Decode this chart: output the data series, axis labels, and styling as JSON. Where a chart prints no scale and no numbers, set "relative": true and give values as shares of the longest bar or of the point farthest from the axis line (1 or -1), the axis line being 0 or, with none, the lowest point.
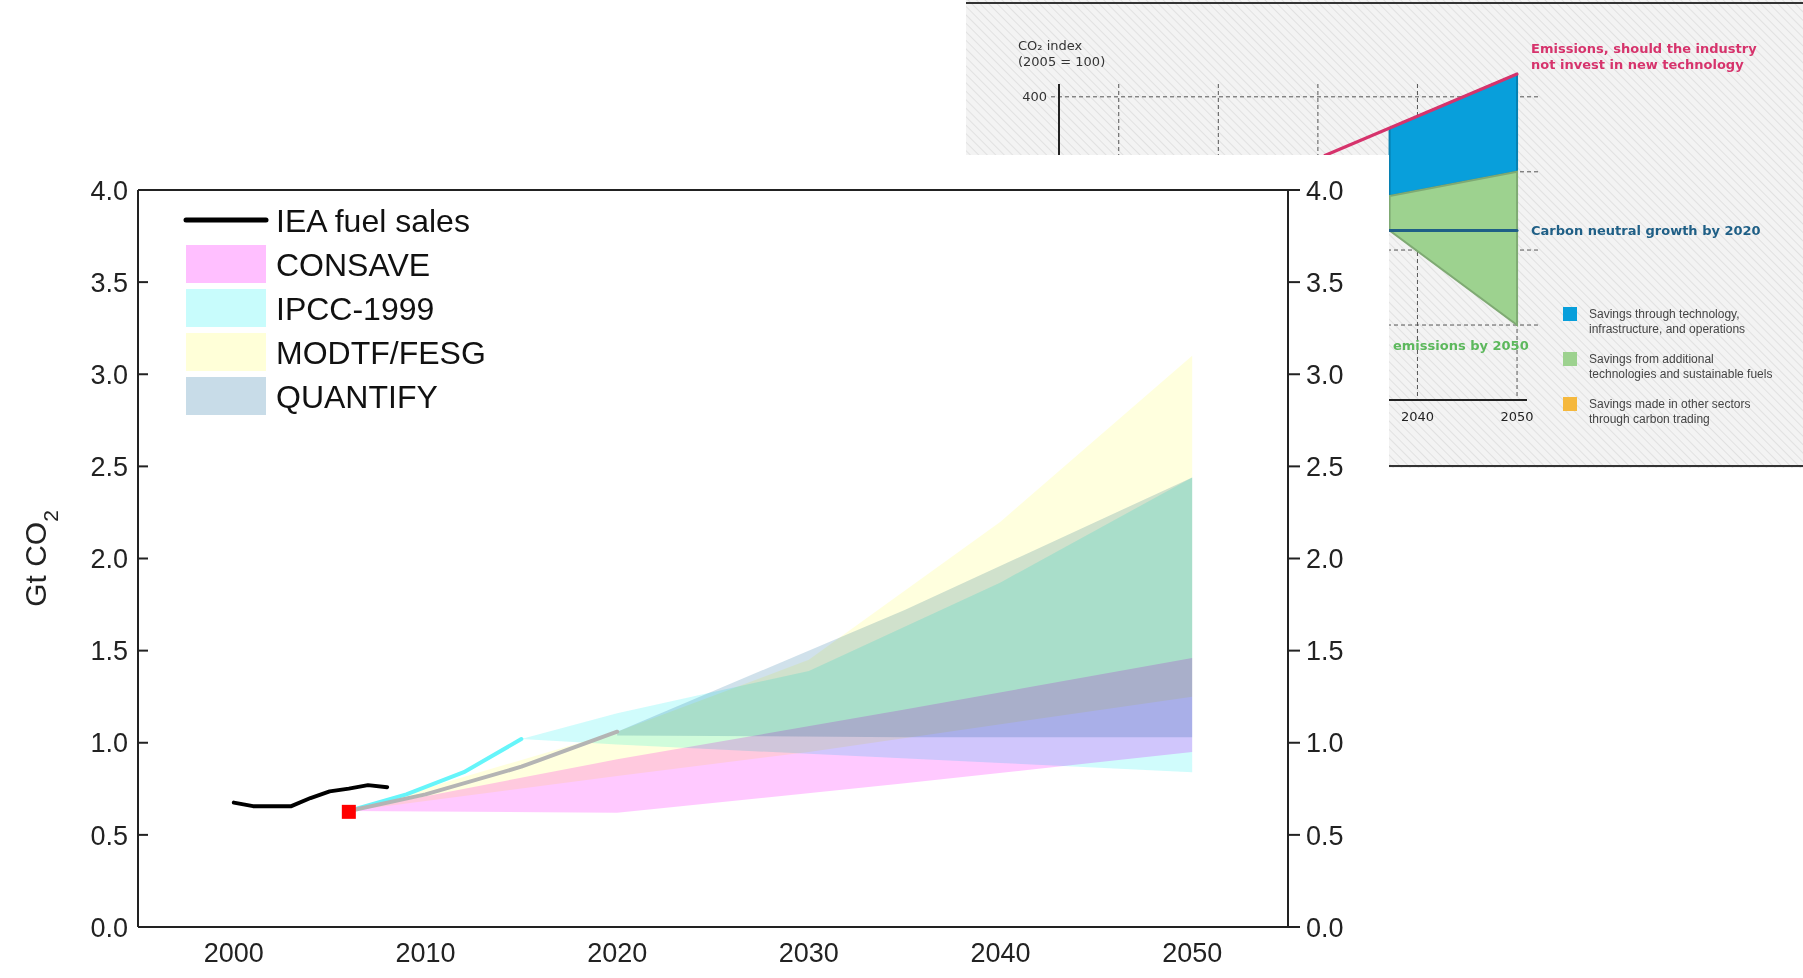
{
  "chart_data": [
    {
      "type": "area",
      "ylabel": "Gt CO$_{2}$",
      "xlim": [
        1995,
        2055
      ],
      "xticks": [
        2000,
        2010,
        2020,
        2030,
        2040,
        2050
      ],
      "ylim": [
        0,
        4
      ],
      "yticks": [
        {
          "value": 0,
          "label": "0.0"
        },
        {
          "value": 0.5,
          "label": "0.5"
        },
        {
          "value": 1,
          "label": "1.0"
        },
        {
          "value": 1.5,
          "label": "1.5"
        },
        {
          "value": 2,
          "label": "2.0"
        },
        {
          "value": 2.5,
          "label": "2.5"
        },
        {
          "value": 3,
          "label": "3.0"
        },
        {
          "value": 3.5,
          "label": "3.5"
        },
        {
          "value": 4,
          "label": "4.0"
        }
      ],
      "y2lim": [
        0,
        4
      ],
      "y2ticks": [
        {
          "value": 0,
          "label": "0.0"
        },
        {
          "value": 0.5,
          "label": "0.5"
        },
        {
          "value": 1,
          "label": "1.0"
        },
        {
          "value": 1.5,
          "label": "1.5"
        },
        {
          "value": 2,
          "label": "2.0"
        },
        {
          "value": 2.5,
          "label": "2.5"
        },
        {
          "value": 3,
          "label": "3.0"
        },
        {
          "value": 3.5,
          "label": "3.5"
        },
        {
          "value": 4,
          "label": "4.0"
        }
      ],
      "legend": "top left",
      "series": [
        {
          "type": "line",
          "name": "IEA fuel sales",
          "color": "#000000",
          "x": [
            2000,
            2001,
            2002,
            2003,
            2004,
            2005,
            2006,
            2007,
            2008
          ],
          "values": [
            0.675,
            0.656,
            0.656,
            0.656,
            0.7,
            0.736,
            0.751,
            0.77,
            0.759
          ]
        },
        {
          "name": "CONSAVE",
          "color": "#ffbfff",
          "x": [
            2006,
            2020,
            2035,
            2050
          ],
          "values": [
            null,
            null,
            null,
            null
          ],
          "upper": [
            0.63,
            0.91,
            1.18,
            1.46
          ],
          "lower": [
            0.63,
            0.62,
            0.78,
            0.95
          ]
        },
        {
          "name": "IPCC-1999",
          "color": "#c8fcfc",
          "x": [
            2015,
            2020,
            2030,
            2040,
            2050
          ],
          "values": [
            null,
            null,
            null,
            null,
            null
          ],
          "upper": [
            1.02,
            1.16,
            1.39,
            1.87,
            2.44
          ],
          "lower": [
            1.02,
            0.99,
            0.94,
            0.89,
            0.84
          ]
        },
        {
          "name": "MODTF/FESG",
          "color": "#ffffd8",
          "x": [
            2006,
            2020,
            2030,
            2040,
            2050
          ],
          "values": [
            null,
            null,
            null,
            null,
            null
          ],
          "upper": [
            0.63,
            1.06,
            1.45,
            2.2,
            3.1
          ],
          "lower": [
            0.63,
            0.82,
            0.95,
            1.1,
            1.25
          ]
        },
        {
          "name": "QUANTIFY",
          "color": "#c8dce8",
          "x": [
            2020,
            2035,
            2050
          ],
          "values": [
            null,
            null,
            null
          ],
          "upper": [
            1.06,
            1.72,
            2.44
          ],
          "lower": [
            1.04,
            1.03,
            1.03
          ]
        },
        {
          "type": "line",
          "color": "#66f5fa",
          "x": [
            2006,
            2009,
            2012,
            2015
          ],
          "values": [
            0.63,
            0.72,
            0.84,
            1.02
          ]
        },
        {
          "type": "line",
          "color": "#b4b4b4",
          "x": [
            2006,
            2010,
            2015,
            2020
          ],
          "values": [
            0.63,
            0.72,
            0.87,
            1.06
          ]
        },
        {
          "type": "scatter",
          "marker": "square",
          "color": "#ff0000",
          "x": [
            2006
          ],
          "values": [
            0.625
          ]
        }
      ]
    },
    {
      "type": "area",
      "relative": true,
      "ylabel": "CO₂ index\n(2005 = 100)",
      "xlim": [
        2004,
        2051
      ],
      "xticks": [
        {
          "value": 2010,
          "label": null
        },
        {
          "value": 2020,
          "label": null
        },
        {
          "value": 2030,
          "label": null
        },
        2040,
        2050
      ],
      "grid": "x",
      "legend": "right",
      "ref_lines": [
        {
          "axis": "y",
          "value": 0.93,
          "line_style": "dashed"
        },
        {
          "axis": "y",
          "value": 0.7,
          "line_style": "dashed"
        },
        {
          "axis": "y",
          "value": 0.46,
          "line_style": "dashed"
        },
        {
          "axis": "y",
          "value": 0.23,
          "line_style": "dashed"
        }
      ],
      "annotations": [
        "emissions by 2050",
        "400"
      ],
      "series": [
        {
          "name": "Savings through technology, infrastructure, and operations",
          "color": "#089fdb",
          "x": [
            2037.2,
            2050
          ],
          "values": [
            null,
            null
          ],
          "upper": [
            0.834,
            1.0
          ],
          "lower": [
            0.626,
            0.7
          ]
        },
        {
          "name": "Savings from additional technologies and sustainable fuels",
          "color": "#9dd28f",
          "x": [
            2037.2,
            2050
          ],
          "values": [
            null,
            null
          ],
          "upper": [
            0.626,
            0.7
          ],
          "lower": [
            0.52,
            0.23
          ]
        },
        {
          "name": "Savings made in other sectors through carbon trading",
          "color": "#f5b83d"
        },
        {
          "type": "line",
          "name": "Emissions, should the industry not invest in new technology",
          "color": "#d6336c",
          "x": [
            2030.7,
            2050
          ],
          "values": [
            0.75,
            1.0
          ]
        },
        {
          "type": "line",
          "name": "Carbon neutral growth by 2020",
          "color": "#1f5f86",
          "x": [
            2037.2,
            2050
          ],
          "values": [
            0.52,
            0.52
          ]
        }
      ]
    }
  ]
}
